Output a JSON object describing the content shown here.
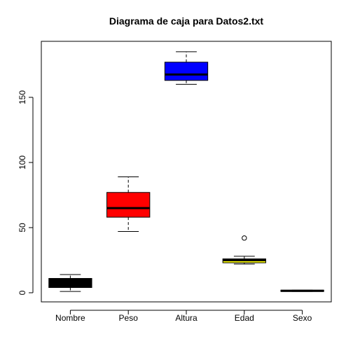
{
  "chart_data": {
    "type": "boxplot",
    "title": "Diagrama de caja para Datos2.txt",
    "xlabel": "",
    "ylabel": "",
    "ylim": [
      -7,
      193
    ],
    "yticks": [
      0,
      50,
      100,
      150
    ],
    "grid": false,
    "categories": [
      "Nombre",
      "Peso",
      "Altura",
      "Edad",
      "Sexo"
    ],
    "boxes": [
      {
        "category": "Nombre",
        "color": "#000000",
        "whisker_low": 1,
        "q1": 4,
        "median": 7,
        "q3": 11,
        "whisker_high": 14,
        "outliers": []
      },
      {
        "category": "Peso",
        "color": "#ff0000",
        "whisker_low": 47,
        "q1": 58,
        "median": 65,
        "q3": 77,
        "whisker_high": 89,
        "outliers": []
      },
      {
        "category": "Altura",
        "color": "#0000ff",
        "whisker_low": 160,
        "q1": 163,
        "median": 167.5,
        "q3": 177,
        "whisker_high": 185,
        "outliers": []
      },
      {
        "category": "Edad",
        "color": "#ffff00",
        "whisker_low": 22,
        "q1": 23,
        "median": 25,
        "q3": 26,
        "whisker_high": 28,
        "outliers": [
          42
        ]
      },
      {
        "category": "Sexo",
        "color": "#000000",
        "whisker_low": 1,
        "q1": 1,
        "median": 1.5,
        "q3": 2,
        "whisker_high": 2,
        "outliers": []
      }
    ]
  }
}
